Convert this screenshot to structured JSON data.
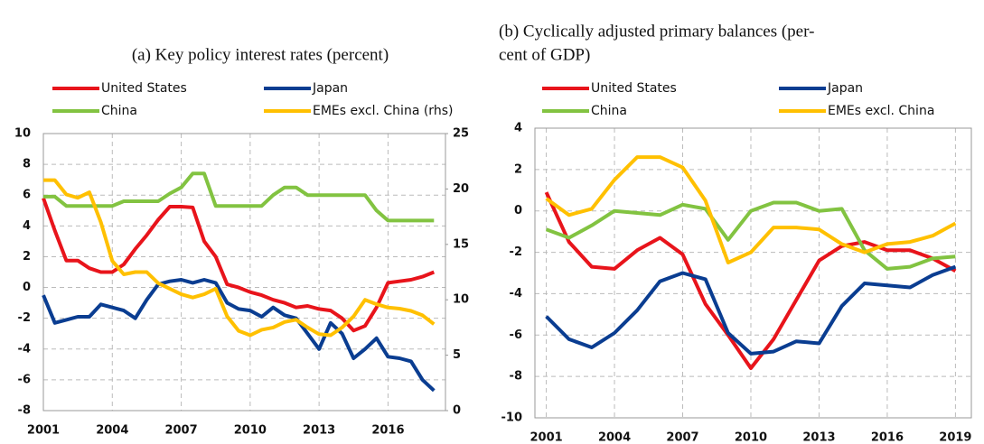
{
  "chart_data": [
    {
      "type": "line",
      "title": "(a) Key policy interest rates (percent)",
      "x": [
        2001,
        2001.5,
        2002,
        2002.5,
        2003,
        2003.5,
        2004,
        2004.5,
        2005,
        2005.5,
        2006,
        2006.5,
        2007,
        2007.5,
        2008,
        2008.5,
        2009,
        2009.5,
        2010,
        2010.5,
        2011,
        2011.5,
        2012,
        2012.5,
        2013,
        2013.5,
        2014,
        2014.5,
        2015,
        2015.5,
        2016,
        2016.5,
        2017,
        2017.5,
        2018
      ],
      "xlim": [
        2001,
        2018.5
      ],
      "xticks": [
        2001,
        2004,
        2007,
        2010,
        2013,
        2016
      ],
      "ylim": [
        -8,
        10
      ],
      "yticks": [
        -8,
        -6,
        -4,
        -2,
        0,
        2,
        4,
        6,
        8,
        10
      ],
      "y2lim": [
        0,
        25
      ],
      "y2ticks": [
        0,
        5,
        10,
        15,
        20,
        25
      ],
      "grid": true,
      "series": [
        {
          "name": "United States",
          "color": "#e8141b",
          "values": [
            5.8,
            3.7,
            1.75,
            1.75,
            1.25,
            1.0,
            1.0,
            1.5,
            2.5,
            3.4,
            4.4,
            5.25,
            5.25,
            5.2,
            3.0,
            2.0,
            0.2,
            0.0,
            -0.3,
            -0.5,
            -0.8,
            -1.0,
            -1.3,
            -1.2,
            -1.4,
            -1.5,
            -2.0,
            -2.8,
            -2.5,
            -1.3,
            0.3,
            0.4,
            0.5,
            0.7,
            1.0
          ]
        },
        {
          "name": "Japan",
          "color": "#0a3d91",
          "values": [
            -0.5,
            -2.3,
            -2.1,
            -1.9,
            -1.9,
            -1.1,
            -1.3,
            -1.5,
            -2.0,
            -0.8,
            0.2,
            0.4,
            0.5,
            0.3,
            0.5,
            0.3,
            -1.0,
            -1.4,
            -1.5,
            -1.9,
            -1.3,
            -1.8,
            -2.0,
            -3.0,
            -4.0,
            -2.3,
            -3.0,
            -4.6,
            -4.0,
            -3.3,
            -4.5,
            -4.6,
            -4.8,
            -6.0,
            -6.7
          ]
        },
        {
          "name": "China",
          "color": "#82c341",
          "values": [
            5.9,
            5.9,
            5.3,
            5.3,
            5.3,
            5.3,
            5.3,
            5.6,
            5.6,
            5.6,
            5.6,
            6.1,
            6.5,
            7.4,
            7.4,
            5.3,
            5.3,
            5.3,
            5.3,
            5.3,
            6.0,
            6.5,
            6.5,
            6.0,
            6.0,
            6.0,
            6.0,
            6.0,
            6.0,
            5.0,
            4.35,
            4.35,
            4.35,
            4.35,
            4.35
          ]
        },
        {
          "name": "EMEs excl. China (rhs)",
          "color": "#ffc000",
          "axis": "y2",
          "values": [
            20.8,
            20.8,
            19.5,
            19.2,
            19.7,
            17.0,
            13.5,
            12.3,
            12.5,
            12.5,
            11.5,
            11.0,
            10.5,
            10.2,
            10.5,
            11.0,
            8.5,
            7.2,
            6.8,
            7.3,
            7.5,
            8.0,
            8.2,
            7.5,
            6.9,
            6.8,
            7.5,
            8.5,
            10.0,
            9.6,
            9.3,
            9.2,
            9.0,
            8.6,
            7.8
          ]
        }
      ]
    },
    {
      "type": "line",
      "title_lines": [
        "(b) Cyclically adjusted primary balances (per-",
        "cent of GDP)"
      ],
      "x": [
        2001,
        2002,
        2003,
        2004,
        2005,
        2006,
        2007,
        2008,
        2009,
        2010,
        2011,
        2012,
        2013,
        2014,
        2015,
        2016,
        2017,
        2018,
        2019
      ],
      "xlim": [
        2000.5,
        2019.7
      ],
      "xticks": [
        2001,
        2004,
        2007,
        2010,
        2013,
        2016,
        2019
      ],
      "ylim": [
        -10,
        4
      ],
      "yticks": [
        -10,
        -8,
        -6,
        -4,
        -2,
        0,
        2,
        4
      ],
      "grid": true,
      "series": [
        {
          "name": "United States",
          "color": "#e8141b",
          "values": [
            0.9,
            -1.5,
            -2.7,
            -2.8,
            -1.9,
            -1.3,
            -2.1,
            -4.5,
            -6.0,
            -7.6,
            -6.2,
            -4.3,
            -2.4,
            -1.7,
            -1.5,
            -1.9,
            -1.9,
            -2.3,
            -2.9
          ]
        },
        {
          "name": "Japan",
          "color": "#0a3d91",
          "values": [
            -5.1,
            -6.2,
            -6.6,
            -5.9,
            -4.8,
            -3.4,
            -3.0,
            -3.3,
            -5.9,
            -6.9,
            -6.8,
            -6.3,
            -6.4,
            -4.6,
            -3.5,
            -3.6,
            -3.7,
            -3.1,
            -2.7
          ]
        },
        {
          "name": "China",
          "color": "#82c341",
          "values": [
            -0.9,
            -1.3,
            -0.7,
            0.0,
            -0.1,
            -0.2,
            0.3,
            0.1,
            -1.4,
            0.0,
            0.4,
            0.4,
            0.0,
            0.1,
            -1.9,
            -2.8,
            -2.7,
            -2.3,
            -2.2
          ]
        },
        {
          "name": "EMEs excl. China",
          "color": "#ffc000",
          "values": [
            0.6,
            -0.2,
            0.1,
            1.5,
            2.6,
            2.6,
            2.1,
            0.5,
            -2.5,
            -2.0,
            -0.8,
            -0.8,
            -0.9,
            -1.6,
            -2.0,
            -1.6,
            -1.5,
            -1.2,
            -0.6
          ]
        }
      ]
    }
  ]
}
